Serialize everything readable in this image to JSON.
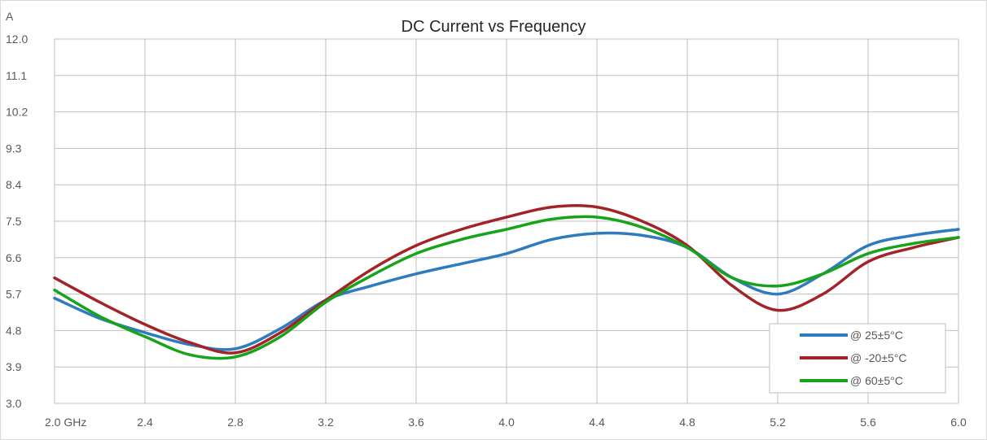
{
  "chart_data": {
    "type": "line",
    "title": "DC Current vs Frequency",
    "y_unit_label": "A",
    "x_first_tick_label": "2.0  GHz",
    "x_ticks": [
      "2.0",
      "2.4",
      "2.8",
      "3.2",
      "3.6",
      "4.0",
      "4.4",
      "4.8",
      "5.2",
      "5.6",
      "6.0"
    ],
    "y_ticks": [
      "3.0",
      "3.9",
      "4.8",
      "5.7",
      "6.6",
      "7.5",
      "8.4",
      "9.3",
      "10.2",
      "11.1",
      "12.0"
    ],
    "xlim": [
      2.0,
      6.0
    ],
    "ylim": [
      3.0,
      12.0
    ],
    "grid": true,
    "legend_position": "bottom-right",
    "series": [
      {
        "name": "@ 25±5°C",
        "color": "#2e7bbf",
        "x": [
          2.0,
          2.2,
          2.4,
          2.6,
          2.8,
          3.0,
          3.2,
          3.4,
          3.6,
          3.8,
          4.0,
          4.2,
          4.4,
          4.6,
          4.8,
          5.0,
          5.2,
          5.4,
          5.6,
          5.8,
          6.0
        ],
        "y": [
          5.6,
          5.1,
          4.75,
          4.45,
          4.35,
          4.85,
          5.55,
          5.9,
          6.2,
          6.45,
          6.7,
          7.05,
          7.2,
          7.15,
          6.85,
          6.1,
          5.7,
          6.2,
          6.9,
          7.15,
          7.3
        ]
      },
      {
        "name": "@ -20±5°C",
        "color": "#a32428",
        "x": [
          2.0,
          2.2,
          2.4,
          2.6,
          2.8,
          3.0,
          3.2,
          3.4,
          3.6,
          3.8,
          4.0,
          4.2,
          4.4,
          4.6,
          4.8,
          5.0,
          5.2,
          5.4,
          5.6,
          5.8,
          6.0
        ],
        "y": [
          6.1,
          5.5,
          4.95,
          4.5,
          4.25,
          4.75,
          5.55,
          6.3,
          6.9,
          7.3,
          7.6,
          7.85,
          7.85,
          7.5,
          6.9,
          5.9,
          5.3,
          5.7,
          6.5,
          6.85,
          7.1
        ]
      },
      {
        "name": "@ 60±5°C",
        "color": "#17a31a",
        "x": [
          2.0,
          2.2,
          2.4,
          2.6,
          2.8,
          3.0,
          3.2,
          3.4,
          3.6,
          3.8,
          4.0,
          4.2,
          4.4,
          4.6,
          4.8,
          5.0,
          5.2,
          5.4,
          5.6,
          5.8,
          6.0
        ],
        "y": [
          5.8,
          5.15,
          4.65,
          4.2,
          4.15,
          4.65,
          5.5,
          6.15,
          6.7,
          7.05,
          7.3,
          7.55,
          7.6,
          7.35,
          6.85,
          6.1,
          5.9,
          6.2,
          6.7,
          6.95,
          7.1
        ]
      }
    ]
  }
}
